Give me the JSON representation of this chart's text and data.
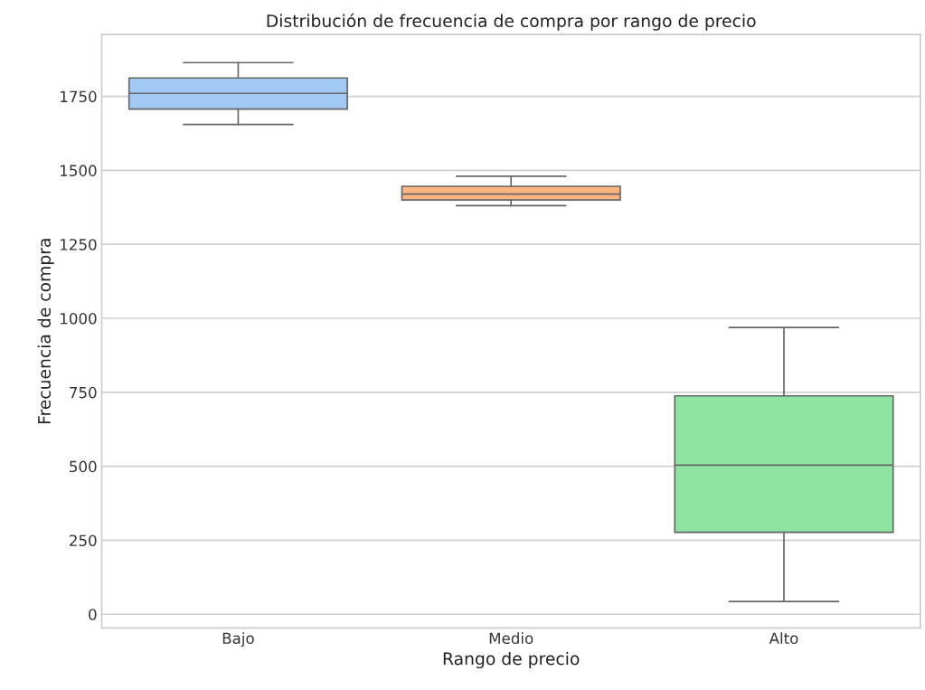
{
  "chart_data": {
    "type": "box",
    "title": "Distribución de frecuencia de compra por rango de precio",
    "xlabel": "Rango de precio",
    "ylabel": "Frecuencia de compra",
    "categories": [
      "Bajo",
      "Medio",
      "Alto"
    ],
    "colors": [
      "#a1c9f4",
      "#ffb482",
      "#8de5a1"
    ],
    "boxes": [
      {
        "low": 1655,
        "q1": 1707,
        "median": 1760,
        "q3": 1812,
        "high": 1864
      },
      {
        "low": 1381,
        "q1": 1400,
        "median": 1420,
        "q3": 1446,
        "high": 1480
      },
      {
        "low": 43,
        "q1": 277,
        "median": 504,
        "q3": 738,
        "high": 969
      }
    ],
    "ylim": [
      -46,
      1959
    ],
    "yticks": [
      0,
      250,
      500,
      750,
      1000,
      1250,
      1500,
      1750
    ],
    "grid": "y"
  }
}
